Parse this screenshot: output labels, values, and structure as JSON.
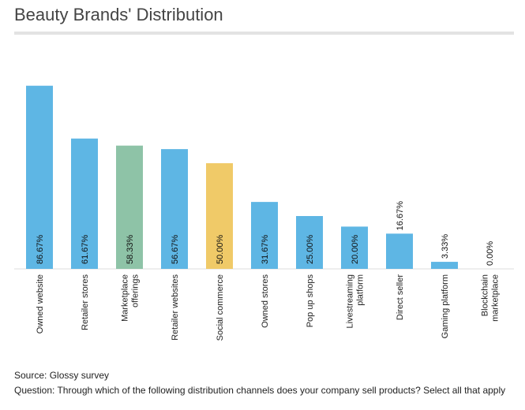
{
  "title": "Beauty Brands' Distribution",
  "source": "Source: Glossy survey",
  "question": "Question: Through which of the following distribution channels does your company sell products? Select all that apply",
  "chart_data": {
    "type": "bar",
    "categories": [
      [
        "Owned website"
      ],
      [
        "Retailer stores"
      ],
      [
        "Marketplace",
        "offerings"
      ],
      [
        "Retailer websites"
      ],
      [
        "Social commerce"
      ],
      [
        "Owned stores"
      ],
      [
        "Pop up shops"
      ],
      [
        "Livestreaming",
        "platform"
      ],
      [
        "Direct seller"
      ],
      [
        "Gaming platform"
      ],
      [
        "Blockchain",
        "marketplace"
      ]
    ],
    "values": [
      86.67,
      61.67,
      58.33,
      56.67,
      50.0,
      31.67,
      25.0,
      20.0,
      16.67,
      3.33,
      0.0
    ],
    "value_labels": [
      "86.67%",
      "61.67%",
      "58.33%",
      "56.67%",
      "50.00%",
      "31.67%",
      "25.00%",
      "20.00%",
      "16.67%",
      "3.33%",
      "0.00%"
    ],
    "colors": [
      "#5eb6e4",
      "#5eb6e4",
      "#8ec3a7",
      "#5eb6e4",
      "#f0ca68",
      "#5eb6e4",
      "#5eb6e4",
      "#5eb6e4",
      "#5eb6e4",
      "#5eb6e4",
      "#5eb6e4"
    ],
    "ylim": [
      0,
      100
    ],
    "grid": false,
    "legend": false
  }
}
